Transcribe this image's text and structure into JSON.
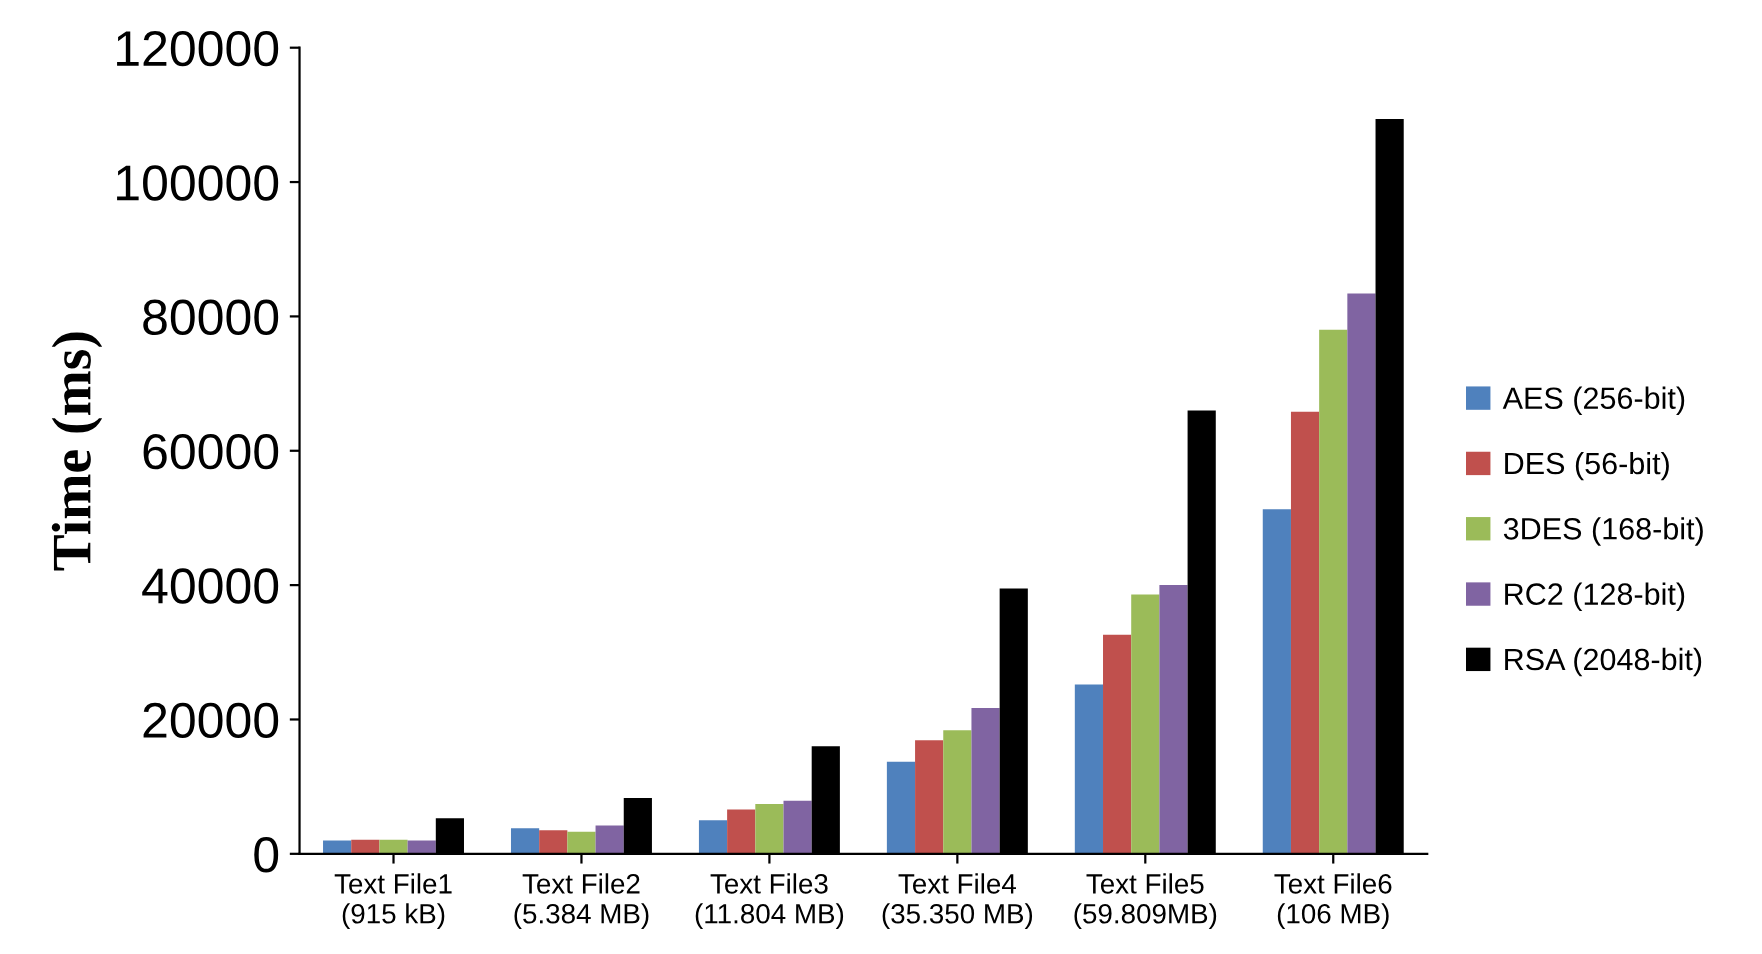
{
  "chart_data": {
    "type": "bar",
    "ylabel": "Time (ms)",
    "categories": [
      "Text File1\n(915 kB)",
      "Text File2\n(5.384 MB)",
      "Text File3\n(11.804 MB)",
      "Text File4\n(35.350 MB)",
      "Text File5\n(59.809MB)",
      "Text File6\n(106 MB)"
    ],
    "series": [
      {
        "name": "AES (256-bit)",
        "color": "#4f81bd",
        "values": [
          2000,
          3800,
          5000,
          13700,
          25200,
          51300
        ]
      },
      {
        "name": "DES (56-bit)",
        "color": "#c0504d",
        "values": [
          2100,
          3500,
          6600,
          16900,
          32600,
          65800
        ]
      },
      {
        "name": "3DES (168-bit)",
        "color": "#9bbb59",
        "values": [
          2100,
          3300,
          7400,
          18400,
          38600,
          78000
        ]
      },
      {
        "name": "RC2 (128-bit)",
        "color": "#8064a2",
        "values": [
          2000,
          4200,
          7900,
          21700,
          40000,
          83400
        ]
      },
      {
        "name": "RSA (2048-bit)",
        "color": "#000000",
        "values": [
          5300,
          8300,
          16000,
          39500,
          66000,
          109400
        ]
      }
    ],
    "ylim": [
      0,
      120000
    ],
    "yticks": [
      0,
      20000,
      40000,
      60000,
      80000,
      100000,
      120000
    ],
    "grid": false,
    "legend": "right"
  }
}
